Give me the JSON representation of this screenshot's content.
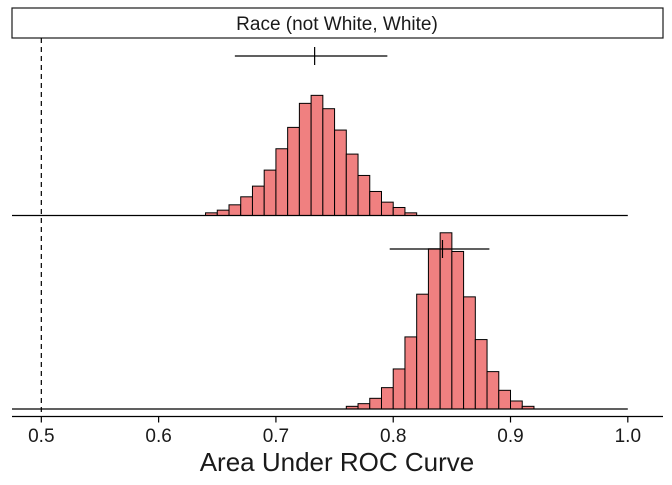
{
  "chart_data": {
    "type": "histogram",
    "title": "",
    "facet_strip_label": "Race (not White, White)",
    "xlabel": "Area Under ROC Curve",
    "ylabel": "",
    "xlim": [
      0.475,
      1.03
    ],
    "x_ticks": [
      0.5,
      0.6,
      0.7,
      0.8,
      0.9,
      1.0
    ],
    "x_tick_labels": [
      "0.5",
      "0.6",
      "0.7",
      "0.8",
      "0.9",
      "1.0"
    ],
    "reference_line_x": 0.5,
    "reference_line_style": "dashed",
    "bar_fill": "#F08080",
    "bar_stroke": "#000000",
    "bin_width": 0.01,
    "grid": false,
    "panels": [
      {
        "interval": {
          "low": 0.665,
          "estimate": 0.733,
          "high": 0.795
        },
        "line_range": [
          0.475,
          1.0
        ],
        "bins": [
          {
            "x0": 0.64,
            "h": 0.01
          },
          {
            "x0": 0.65,
            "h": 0.02
          },
          {
            "x0": 0.66,
            "h": 0.04
          },
          {
            "x0": 0.67,
            "h": 0.07
          },
          {
            "x0": 0.68,
            "h": 0.11
          },
          {
            "x0": 0.69,
            "h": 0.17
          },
          {
            "x0": 0.7,
            "h": 0.25
          },
          {
            "x0": 0.71,
            "h": 0.33
          },
          {
            "x0": 0.72,
            "h": 0.42
          },
          {
            "x0": 0.73,
            "h": 0.45
          },
          {
            "x0": 0.74,
            "h": 0.4
          },
          {
            "x0": 0.75,
            "h": 0.32
          },
          {
            "x0": 0.76,
            "h": 0.23
          },
          {
            "x0": 0.77,
            "h": 0.15
          },
          {
            "x0": 0.78,
            "h": 0.09
          },
          {
            "x0": 0.79,
            "h": 0.05
          },
          {
            "x0": 0.8,
            "h": 0.03
          },
          {
            "x0": 0.81,
            "h": 0.01
          }
        ]
      },
      {
        "interval": {
          "low": 0.797,
          "estimate": 0.842,
          "high": 0.882
        },
        "line_range": [
          0.475,
          1.0
        ],
        "bins": [
          {
            "x0": 0.76,
            "h": 0.01
          },
          {
            "x0": 0.77,
            "h": 0.02
          },
          {
            "x0": 0.78,
            "h": 0.04
          },
          {
            "x0": 0.79,
            "h": 0.08
          },
          {
            "x0": 0.8,
            "h": 0.15
          },
          {
            "x0": 0.81,
            "h": 0.27
          },
          {
            "x0": 0.82,
            "h": 0.43
          },
          {
            "x0": 0.83,
            "h": 0.6
          },
          {
            "x0": 0.84,
            "h": 0.66
          },
          {
            "x0": 0.85,
            "h": 0.59
          },
          {
            "x0": 0.86,
            "h": 0.42
          },
          {
            "x0": 0.87,
            "h": 0.26
          },
          {
            "x0": 0.88,
            "h": 0.14
          },
          {
            "x0": 0.89,
            "h": 0.07
          },
          {
            "x0": 0.9,
            "h": 0.03
          },
          {
            "x0": 0.91,
            "h": 0.01
          }
        ]
      }
    ]
  }
}
